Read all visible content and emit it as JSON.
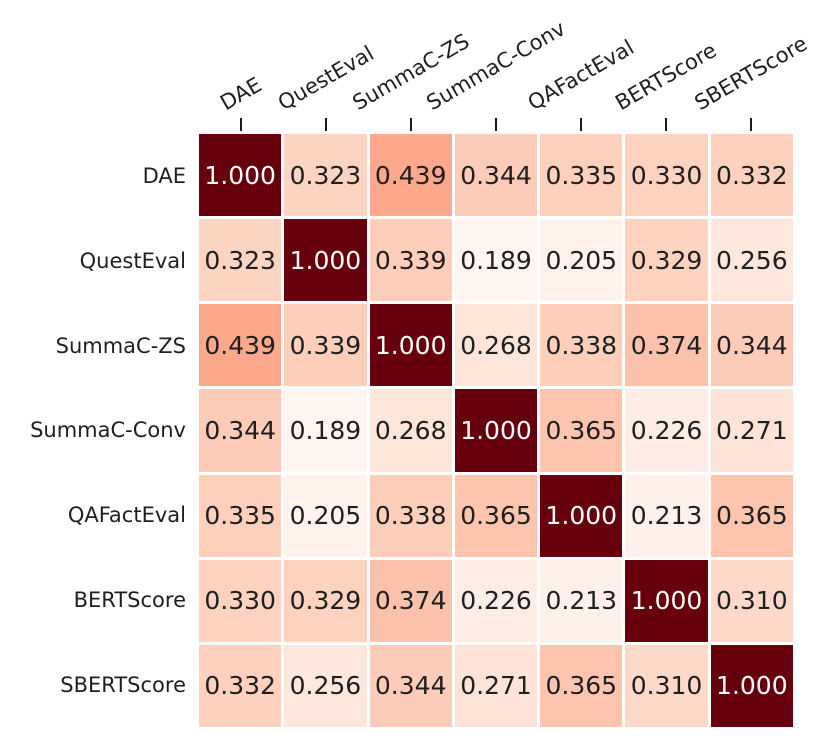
{
  "chart_data": {
    "type": "heatmap",
    "title": "",
    "description": "Correlation matrix heatmap between factuality/similarity metrics",
    "labels": [
      "DAE",
      "QuestEval",
      "SummaC-ZS",
      "SummaC-Conv",
      "QAFactEval",
      "BERTScore",
      "SBERTScore"
    ],
    "x_labels": [
      "DAE",
      "QuestEval",
      "SummaC-ZS",
      "SummaC-Conv",
      "QAFactEval",
      "BERTScore",
      "SBERTScore"
    ],
    "y_labels": [
      "DAE",
      "QuestEval",
      "SummaC-ZS",
      "SummaC-Conv",
      "QAFactEval",
      "BERTScore",
      "SBERTScore"
    ],
    "matrix": [
      [
        1.0,
        0.323,
        0.439,
        0.344,
        0.335,
        0.33,
        0.332
      ],
      [
        0.323,
        1.0,
        0.339,
        0.189,
        0.205,
        0.329,
        0.256
      ],
      [
        0.439,
        0.339,
        1.0,
        0.268,
        0.338,
        0.374,
        0.344
      ],
      [
        0.344,
        0.189,
        0.268,
        1.0,
        0.365,
        0.226,
        0.271
      ],
      [
        0.335,
        0.205,
        0.338,
        0.365,
        1.0,
        0.213,
        0.365
      ],
      [
        0.33,
        0.329,
        0.374,
        0.226,
        0.213,
        1.0,
        0.31
      ],
      [
        0.332,
        0.256,
        0.344,
        0.271,
        0.365,
        0.31,
        1.0
      ]
    ],
    "value_decimals": 3,
    "colormap": "Reds",
    "colormap_stops": [
      [
        255,
        245,
        240
      ],
      [
        254,
        224,
        210
      ],
      [
        252,
        187,
        161
      ],
      [
        252,
        146,
        114
      ],
      [
        251,
        106,
        74
      ],
      [
        239,
        59,
        44
      ],
      [
        203,
        24,
        29
      ],
      [
        165,
        15,
        21
      ],
      [
        103,
        0,
        13
      ]
    ],
    "vmin": 0.189,
    "vmax": 1.0,
    "colors": {
      "diagonal_max": "#67000d",
      "background": "#ffffff",
      "gridline": "#ffffff",
      "tick": "#1a1a1a",
      "label_text": "#1f1f1f",
      "annot_text_dark": "#1f1f1f",
      "annot_text_light": "#ffffff"
    },
    "legend": "none",
    "grid": "white cell separators",
    "x_axis_position": "top",
    "x_label_rotation_deg": -30
  }
}
